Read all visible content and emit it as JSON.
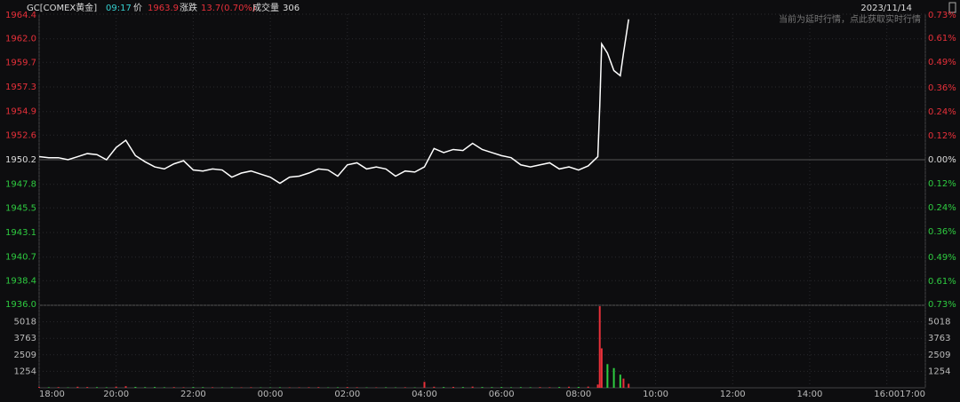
{
  "header": {
    "symbol": "GC[COMEX黄金]",
    "time": "09:17",
    "price_label": "价",
    "price": "1963.9",
    "change_label": "涨跌",
    "change": "13.7(0.70%)",
    "volume_label": "成交量",
    "volume": "306",
    "date": "2023/11/14",
    "notice": "当前为延时行情，点此获取实时行情"
  },
  "chart_data": [
    {
      "type": "line",
      "series": [
        {
          "name": "GC",
          "color": "#ffffff",
          "x": [
            0,
            15,
            30,
            45,
            60,
            75,
            90,
            105,
            120,
            135,
            150,
            165,
            180,
            195,
            210,
            225,
            240,
            255,
            270,
            285,
            300,
            315,
            330,
            345,
            360,
            375,
            390,
            405,
            420,
            435,
            450,
            465,
            480,
            495,
            510,
            525,
            540,
            555,
            570,
            585,
            600,
            615,
            630,
            645,
            660,
            675,
            690,
            705,
            720,
            735,
            750,
            765,
            780,
            795,
            810,
            825,
            840,
            855,
            870,
            873,
            876,
            885,
            895,
            905,
            910,
            918
          ],
          "values": [
            1950.5,
            1950.4,
            1950.4,
            1950.2,
            1950.5,
            1950.8,
            1950.7,
            1950.2,
            1951.4,
            1952.1,
            1950.6,
            1950.0,
            1949.5,
            1949.3,
            1949.8,
            1950.1,
            1949.2,
            1949.1,
            1949.3,
            1949.2,
            1948.5,
            1948.9,
            1949.1,
            1948.8,
            1948.5,
            1947.9,
            1948.5,
            1948.6,
            1948.9,
            1949.3,
            1949.2,
            1948.6,
            1949.7,
            1949.9,
            1949.3,
            1949.5,
            1949.3,
            1948.6,
            1949.1,
            1949.0,
            1949.5,
            1951.3,
            1950.9,
            1951.2,
            1951.1,
            1951.8,
            1951.2,
            1950.9,
            1950.6,
            1950.4,
            1949.7,
            1949.5,
            1949.7,
            1949.9,
            1949.3,
            1949.5,
            1949.2,
            1949.6,
            1950.5,
            1955.4,
            1961.5,
            1960.6,
            1958.9,
            1958.4,
            1960.6,
            1963.9
          ]
        }
      ],
      "xlim": [
        0,
        1380
      ],
      "ylim": [
        1936.0,
        1964.4
      ],
      "yticks": [
        {
          "value": 1964.4,
          "label": "1964.4"
        },
        {
          "value": 1962.0,
          "label": "1962.0"
        },
        1959.7,
        1957.3,
        1954.9,
        1952.6,
        1950.2,
        1947.8,
        1945.5,
        1943.1,
        1940.7,
        1938.4,
        {
          "value": 1936.0,
          "label": "1936.0"
        }
      ],
      "y2lim": [
        -0.73,
        0.73
      ],
      "y2ticks": [
        {
          "value": 0.73,
          "label": "0.73%"
        },
        {
          "value": 0.61,
          "label": "0.61%"
        },
        {
          "value": 0.49,
          "label": "0.49%"
        },
        {
          "value": 0.36,
          "label": "0.36%"
        },
        {
          "value": 0.24,
          "label": "0.24%"
        },
        {
          "value": 0.12,
          "label": "0.12%"
        },
        {
          "value": 0.0,
          "label": "0.00%"
        },
        {
          "value": -0.12,
          "label": "0.12%"
        },
        {
          "value": -0.24,
          "label": "0.24%"
        },
        {
          "value": -0.36,
          "label": "0.36%"
        },
        {
          "value": -0.49,
          "label": "0.49%"
        },
        {
          "value": -0.61,
          "label": "0.61%"
        },
        {
          "value": -0.73,
          "label": "0.73%"
        }
      ],
      "up_color": "#e8303a",
      "down_color": "#2ecc40",
      "grid": true
    },
    {
      "type": "bar",
      "up_color": "#e8303a",
      "down_color": "#2ecc40",
      "x": [
        0,
        15,
        30,
        45,
        60,
        75,
        90,
        105,
        120,
        135,
        150,
        165,
        180,
        195,
        210,
        225,
        240,
        255,
        270,
        285,
        300,
        315,
        330,
        345,
        360,
        375,
        390,
        405,
        420,
        435,
        450,
        465,
        480,
        495,
        510,
        525,
        540,
        555,
        570,
        585,
        600,
        615,
        630,
        645,
        660,
        675,
        690,
        705,
        720,
        735,
        750,
        765,
        780,
        795,
        810,
        825,
        840,
        855,
        870,
        873,
        876,
        885,
        895,
        905,
        910,
        918
      ],
      "values": [
        60,
        40,
        50,
        30,
        80,
        60,
        50,
        40,
        90,
        120,
        70,
        50,
        60,
        40,
        50,
        40,
        60,
        50,
        40,
        30,
        40,
        30,
        40,
        30,
        30,
        40,
        30,
        30,
        40,
        50,
        30,
        40,
        60,
        40,
        30,
        30,
        40,
        30,
        40,
        30,
        450,
        80,
        60,
        70,
        60,
        90,
        60,
        50,
        60,
        40,
        50,
        40,
        50,
        40,
        60,
        80,
        70,
        90,
        250,
        6200,
        3000,
        1800,
        1500,
        1000,
        700,
        306
      ],
      "xlim": [
        0,
        1380
      ],
      "ylim": [
        0,
        6272
      ],
      "yticks": [
        5018,
        3763,
        2509,
        1254
      ],
      "xticks": [
        {
          "value": 0,
          "label": "18:00"
        },
        {
          "value": 120,
          "label": "20:00"
        },
        {
          "value": 240,
          "label": "22:00"
        },
        {
          "value": 360,
          "label": "00:00"
        },
        {
          "value": 480,
          "label": "02:00"
        },
        {
          "value": 600,
          "label": "04:00"
        },
        {
          "value": 720,
          "label": "06:00"
        },
        {
          "value": 840,
          "label": "08:00"
        },
        {
          "value": 960,
          "label": "10:00"
        },
        {
          "value": 1080,
          "label": "12:00"
        },
        {
          "value": 1200,
          "label": "14:00"
        },
        {
          "value": 1320,
          "label": "16:00"
        },
        {
          "value": 1380,
          "label": "17:00"
        }
      ]
    }
  ]
}
